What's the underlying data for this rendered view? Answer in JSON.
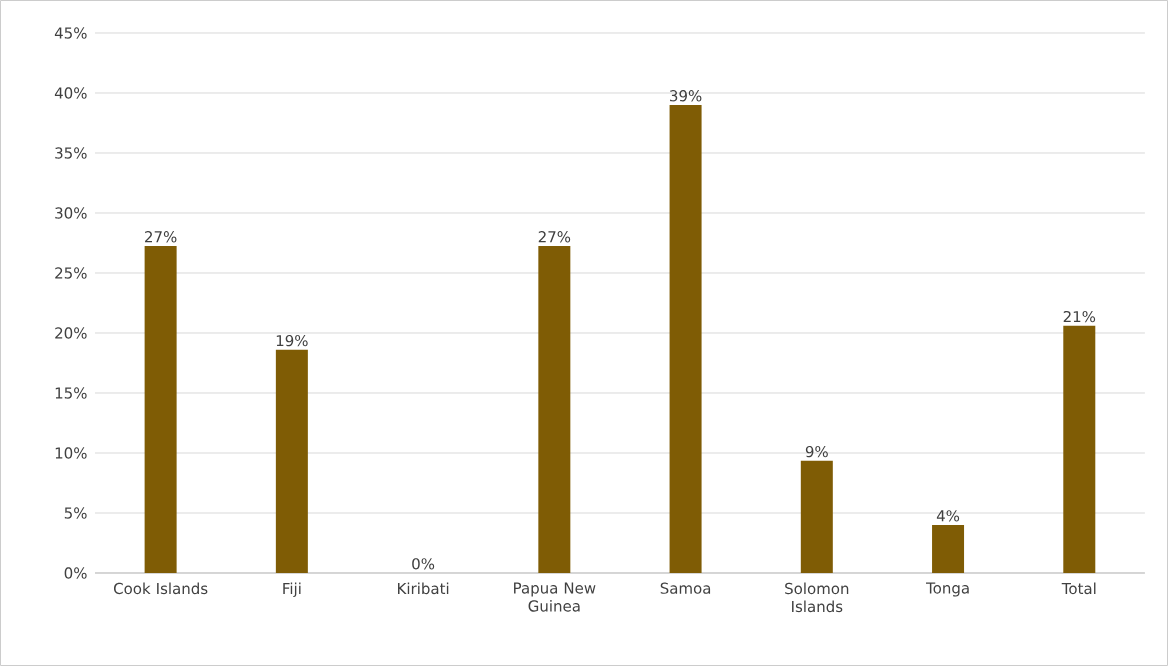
{
  "chart_data": {
    "type": "bar",
    "categories": [
      "Cook Islands",
      "Fiji",
      "Kiribati",
      "Papua New Guinea",
      "Samoa",
      "Solomon Islands",
      "Tonga",
      "Total"
    ],
    "values": [
      27.25,
      18.6,
      0,
      27.25,
      39.0,
      9.35,
      4.0,
      20.6
    ],
    "value_labels": [
      "27%",
      "19%",
      "0%",
      "27%",
      "39%",
      "9%",
      "4%",
      "21%"
    ],
    "color": "#7f5c05",
    "ylim": [
      0,
      45
    ],
    "yticks": [
      {
        "value": 0,
        "label": "0%"
      },
      {
        "value": 5,
        "label": "5%"
      },
      {
        "value": 10,
        "label": "10%"
      },
      {
        "value": 15,
        "label": "15%"
      },
      {
        "value": 20,
        "label": "20%"
      },
      {
        "value": 25,
        "label": "25%"
      },
      {
        "value": 30,
        "label": "30%"
      },
      {
        "value": 35,
        "label": "35%"
      },
      {
        "value": 40,
        "label": "40%"
      },
      {
        "value": 45,
        "label": "45%"
      }
    ],
    "grid": "y"
  }
}
